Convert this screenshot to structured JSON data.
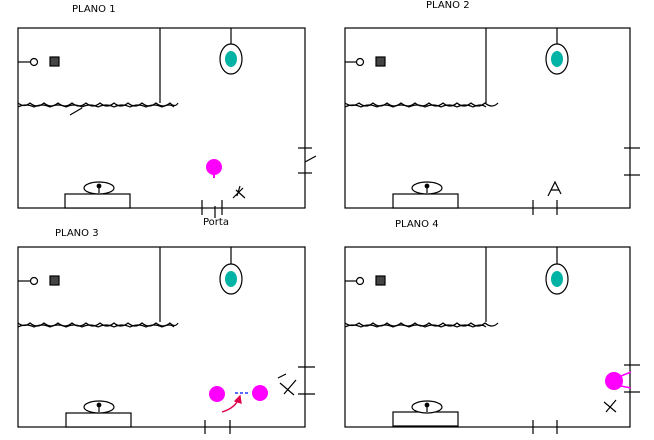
{
  "plans": [
    {
      "title": "PLANO 1",
      "door_label": "Porta"
    },
    {
      "title": "PLANO 2"
    },
    {
      "title": "PLANO 3"
    },
    {
      "title": "PLANO 4"
    }
  ],
  "colors": {
    "wall": "#000000",
    "figure": "#ff00ff",
    "toilet_water": "#00b3a4",
    "arrow_red": "#e0004a",
    "arrow_blue": "#1f3cff"
  }
}
